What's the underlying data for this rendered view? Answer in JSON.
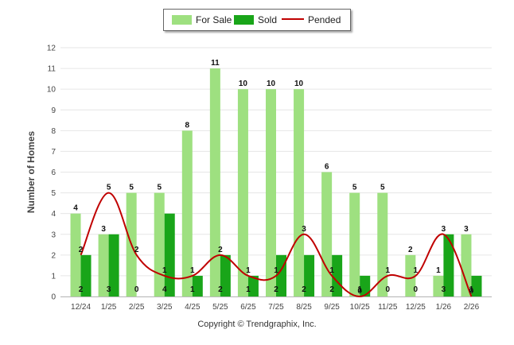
{
  "chart_data": {
    "type": "bar",
    "title": "",
    "xlabel": "",
    "ylabel": "Number of Homes",
    "ylim": [
      0,
      12
    ],
    "yticks": [
      "0",
      "1",
      "2",
      "3",
      "4",
      "5",
      "6",
      "7",
      "8",
      "9",
      "10",
      "11",
      "12"
    ],
    "grid": true,
    "legend_position": "top-center",
    "categories": [
      "12/24",
      "1/25",
      "2/25",
      "3/25",
      "4/25",
      "5/25",
      "6/25",
      "7/25",
      "8/25",
      "9/25",
      "10/25",
      "11/25",
      "12/25",
      "1/26",
      "2/26"
    ],
    "series": [
      {
        "name": "For Sale",
        "kind": "bar",
        "color": "#9ee080",
        "values": [
          4,
          3,
          5,
          5,
          8,
          11,
          10,
          10,
          10,
          6,
          5,
          5,
          2,
          1,
          3
        ]
      },
      {
        "name": "Sold",
        "kind": "bar",
        "color": "#19a519",
        "values": [
          2,
          3,
          0,
          4,
          1,
          2,
          1,
          2,
          2,
          2,
          1,
          0,
          0,
          3,
          1
        ]
      },
      {
        "name": "Pended",
        "kind": "line",
        "color": "#c00000",
        "values": [
          2,
          5,
          2,
          1,
          1,
          2,
          1,
          1,
          3,
          1,
          0,
          1,
          1,
          3,
          0
        ]
      }
    ],
    "footer": "Copyright © Trendgraphix, Inc."
  }
}
